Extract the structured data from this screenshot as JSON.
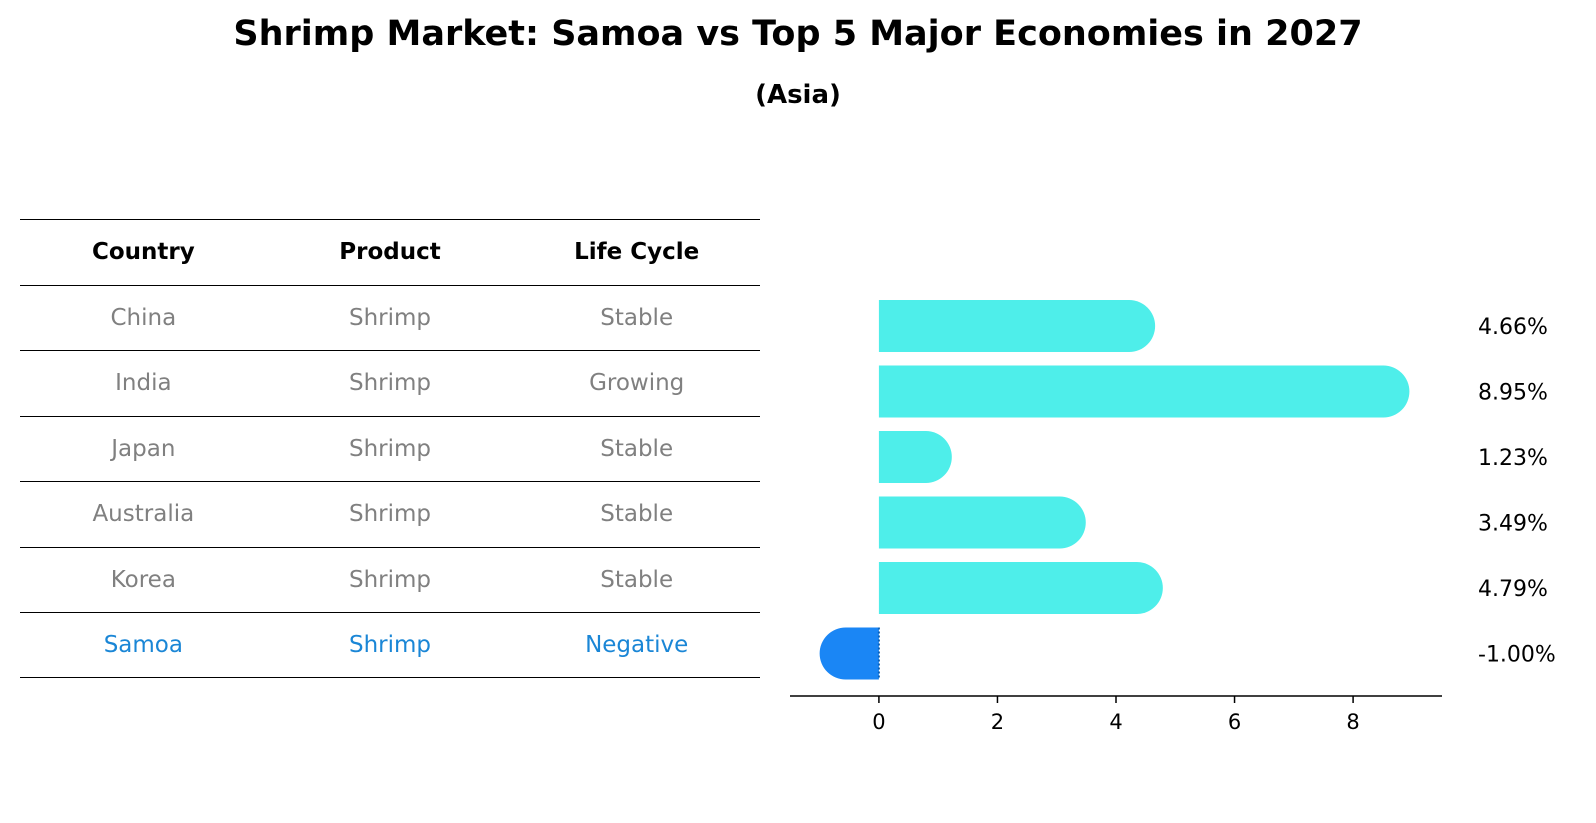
{
  "title": "Shrimp Market: Samoa vs Top 5 Major Economies in 2027",
  "subtitle": "(Asia)",
  "table": {
    "headers": [
      "Country",
      "Product",
      "Life Cycle"
    ],
    "rows": [
      [
        "China",
        "Shrimp",
        "Stable"
      ],
      [
        "India",
        "Shrimp",
        "Growing"
      ],
      [
        "Japan",
        "Shrimp",
        "Stable"
      ],
      [
        "Australia",
        "Shrimp",
        "Stable"
      ],
      [
        "Korea",
        "Shrimp",
        "Stable"
      ],
      [
        "Samoa",
        "Shrimp",
        "Negative"
      ]
    ],
    "highlight_row": 5,
    "text_color": "#808080",
    "highlight_color": "#1a86d6"
  },
  "chart_data": {
    "type": "bar",
    "orientation": "horizontal",
    "categories": [
      "China",
      "India",
      "Japan",
      "Australia",
      "Korea",
      "Samoa"
    ],
    "values": [
      4.66,
      8.95,
      1.23,
      3.49,
      4.79,
      -1.0
    ],
    "value_labels": [
      "4.66%",
      "8.95%",
      "1.23%",
      "3.49%",
      "4.79%",
      "-1.00%"
    ],
    "xlim": [
      -1.5,
      9.5
    ],
    "xticks": [
      0,
      2,
      4,
      6,
      8
    ],
    "xlabel": "",
    "ylabel": "",
    "grid": false,
    "colors": {
      "positive": "#4eeeea",
      "highlight": "#1a86f5"
    },
    "highlight_index": 5
  }
}
